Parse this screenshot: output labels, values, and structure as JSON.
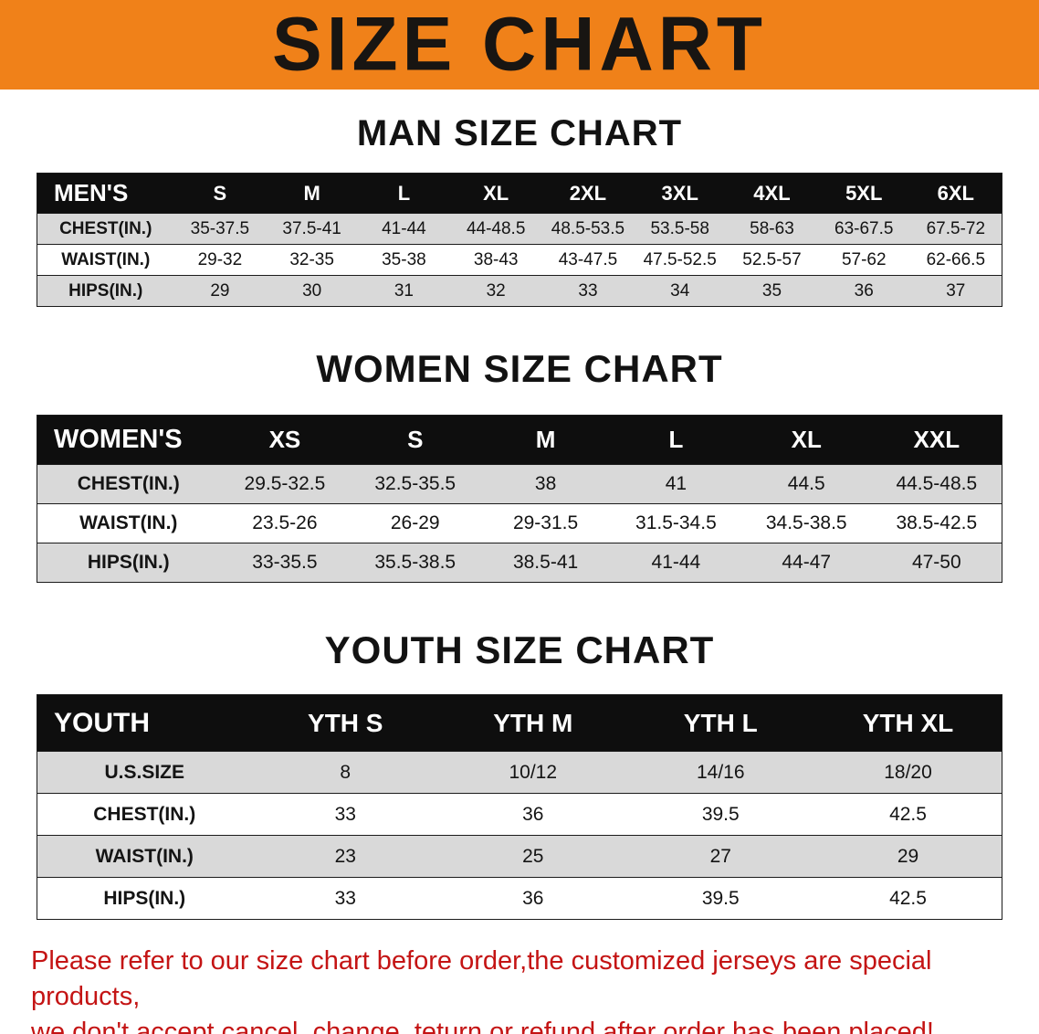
{
  "banner": {
    "title": "SIZE CHART"
  },
  "sections": [
    {
      "heading": "MAN SIZE CHART",
      "table": {
        "header": [
          "MEN'S",
          "S",
          "M",
          "L",
          "XL",
          "2XL",
          "3XL",
          "4XL",
          "5XL",
          "6XL"
        ],
        "rows": [
          {
            "label": "CHEST(IN.)",
            "values": [
              "35-37.5",
              "37.5-41",
              "41-44",
              "44-48.5",
              "48.5-53.5",
              "53.5-58",
              "58-63",
              "63-67.5",
              "67.5-72"
            ]
          },
          {
            "label": "WAIST(IN.)",
            "values": [
              "29-32",
              "32-35",
              "35-38",
              "38-43",
              "43-47.5",
              "47.5-52.5",
              "52.5-57",
              "57-62",
              "62-66.5"
            ]
          },
          {
            "label": "HIPS(IN.)",
            "values": [
              "29",
              "30",
              "31",
              "32",
              "33",
              "34",
              "35",
              "36",
              "37"
            ]
          }
        ]
      }
    },
    {
      "heading": "WOMEN SIZE CHART",
      "table": {
        "header": [
          "WOMEN'S",
          "XS",
          "S",
          "M",
          "L",
          "XL",
          "XXL"
        ],
        "rows": [
          {
            "label": "CHEST(IN.)",
            "values": [
              "29.5-32.5",
              "32.5-35.5",
              "38",
              "41",
              "44.5",
              "44.5-48.5"
            ]
          },
          {
            "label": "WAIST(IN.)",
            "values": [
              "23.5-26",
              "26-29",
              "29-31.5",
              "31.5-34.5",
              "34.5-38.5",
              "38.5-42.5"
            ]
          },
          {
            "label": "HIPS(IN.)",
            "values": [
              "33-35.5",
              "35.5-38.5",
              "38.5-41",
              "41-44",
              "44-47",
              "47-50"
            ]
          }
        ]
      }
    },
    {
      "heading": "YOUTH SIZE CHART",
      "table": {
        "header": [
          "YOUTH",
          "YTH S",
          "YTH M",
          "YTH L",
          "YTH XL"
        ],
        "rows": [
          {
            "label": "U.S.SIZE",
            "values": [
              "8",
              "10/12",
              "14/16",
              "18/20"
            ]
          },
          {
            "label": "CHEST(IN.)",
            "values": [
              "33",
              "36",
              "39.5",
              "42.5"
            ]
          },
          {
            "label": "WAIST(IN.)",
            "values": [
              "23",
              "25",
              "27",
              "29"
            ]
          },
          {
            "label": "HIPS(IN.)",
            "values": [
              "33",
              "36",
              "39.5",
              "42.5"
            ]
          }
        ]
      }
    }
  ],
  "disclaimer": {
    "line1": "Please refer to our size chart before order,the customized jerseys are special products,",
    "line2": "we don't accept cancel, change, teturn or refund after order has been placed!"
  },
  "colors": {
    "banner_bg": "#f08119",
    "table_header_bg": "#0e0e0e",
    "row_stripe": "#d9d9d9",
    "disclaimer_red": "#c41414"
  }
}
